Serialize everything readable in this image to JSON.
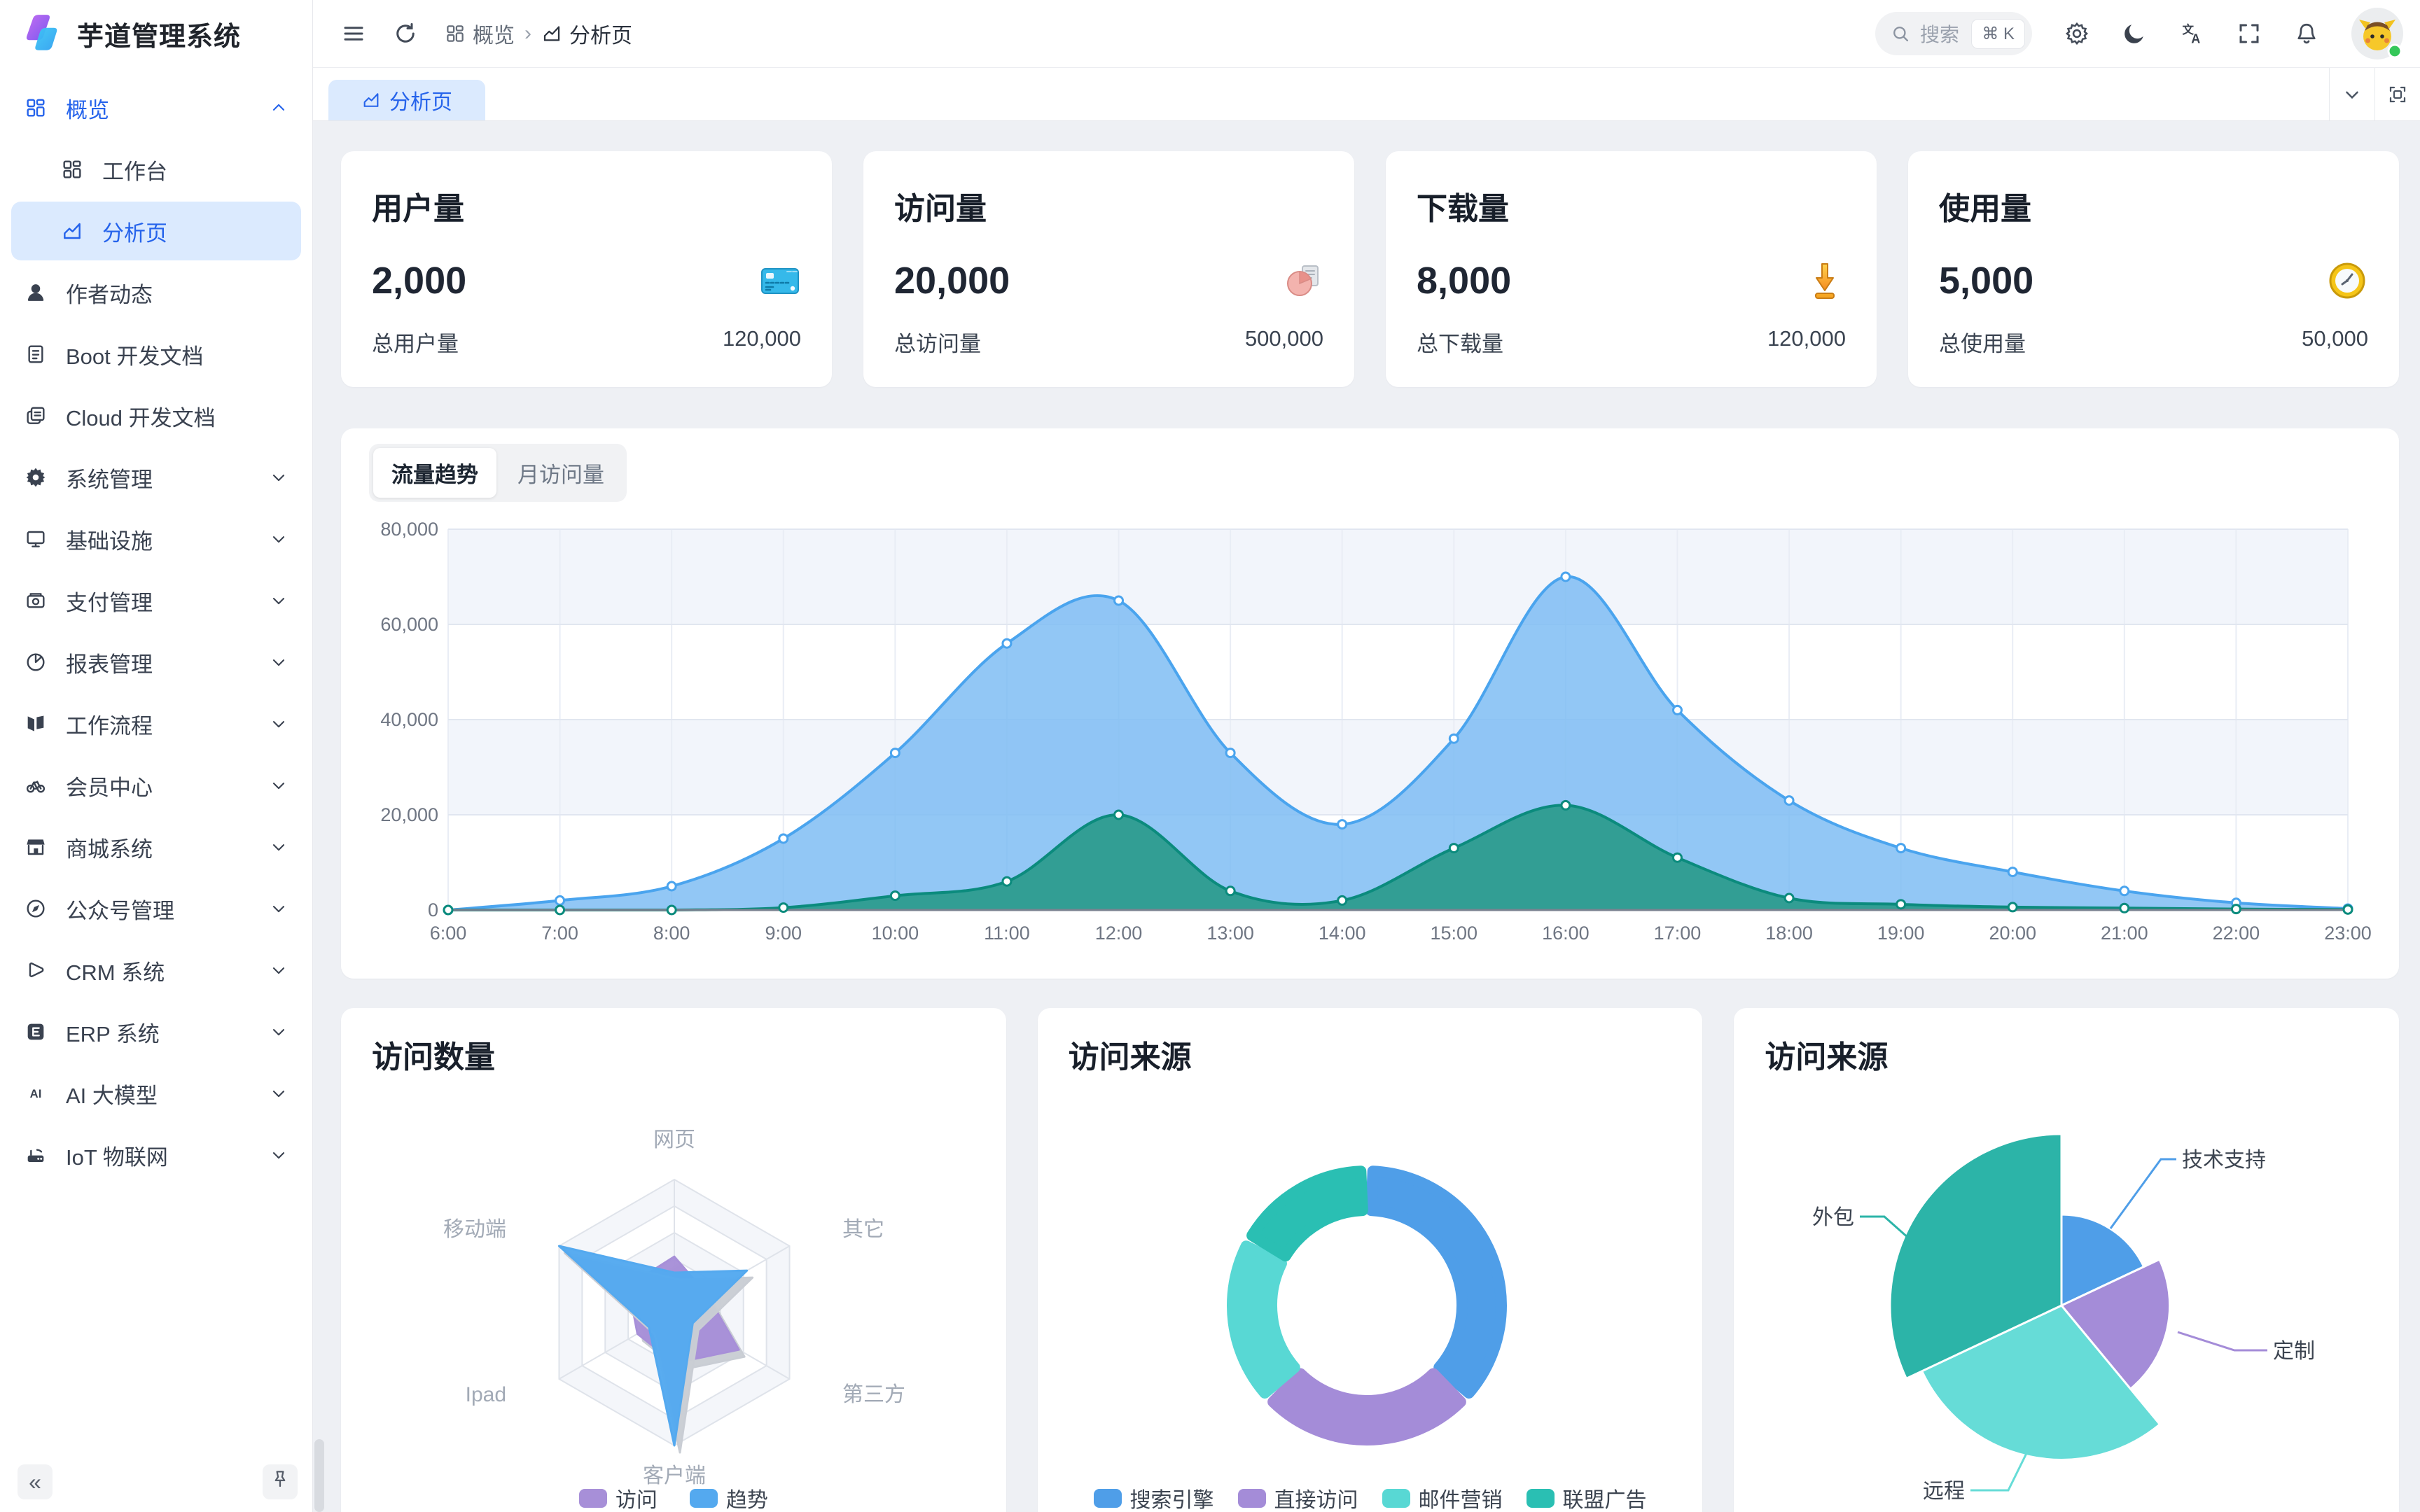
{
  "app": {
    "name": "芋道管理系统"
  },
  "header": {
    "breadcrumb": {
      "root": "概览",
      "current": "分析页"
    },
    "search": {
      "placeholder": "搜索",
      "shortcut": "⌘ K"
    }
  },
  "tabbar": {
    "active_tab": "分析页"
  },
  "sidebar": {
    "collapse_icon": "«",
    "items": [
      {
        "key": "overview",
        "label": "概览",
        "icon": "grid",
        "parent_active": true,
        "chevron": "up"
      },
      {
        "key": "workbench",
        "label": "工作台",
        "icon": "grid",
        "indent": true
      },
      {
        "key": "analysis",
        "label": "分析页",
        "icon": "chart",
        "indent": true,
        "selected": true
      },
      {
        "key": "author",
        "label": "作者动态",
        "icon": "user"
      },
      {
        "key": "boot-doc",
        "label": "Boot 开发文档",
        "icon": "file"
      },
      {
        "key": "cloud-doc",
        "label": "Cloud 开发文档",
        "icon": "copy"
      },
      {
        "key": "system",
        "label": "系统管理",
        "icon": "gear",
        "chevron": "down"
      },
      {
        "key": "infra",
        "label": "基础设施",
        "icon": "monitor",
        "chevron": "down"
      },
      {
        "key": "payment",
        "label": "支付管理",
        "icon": "wallet",
        "chevron": "down"
      },
      {
        "key": "report",
        "label": "报表管理",
        "icon": "pie",
        "chevron": "down"
      },
      {
        "key": "workflow",
        "label": "工作流程",
        "icon": "flow",
        "chevron": "down"
      },
      {
        "key": "member",
        "label": "会员中心",
        "icon": "bike",
        "chevron": "down"
      },
      {
        "key": "mall",
        "label": "商城系统",
        "icon": "shop",
        "chevron": "down"
      },
      {
        "key": "mp",
        "label": "公众号管理",
        "icon": "compass",
        "chevron": "down"
      },
      {
        "key": "crm",
        "label": "CRM 系统",
        "icon": "play",
        "chevron": "down"
      },
      {
        "key": "erp",
        "label": "ERP 系统",
        "icon": "ebox",
        "chevron": "down"
      },
      {
        "key": "ai",
        "label": "AI 大模型",
        "icon": "ai",
        "chevron": "down"
      },
      {
        "key": "iot",
        "label": "IoT 物联网",
        "icon": "iot",
        "chevron": "down"
      }
    ]
  },
  "stats": [
    {
      "title": "用户量",
      "value": "2,000",
      "icon": "bank-card",
      "total_label": "总用户量",
      "total_value": "120,000"
    },
    {
      "title": "访问量",
      "value": "20,000",
      "icon": "pie-doc",
      "total_label": "总访问量",
      "total_value": "500,000"
    },
    {
      "title": "下载量",
      "value": "8,000",
      "icon": "download",
      "total_label": "总下载量",
      "total_value": "120,000"
    },
    {
      "title": "使用量",
      "value": "5,000",
      "icon": "clock",
      "total_label": "总使用量",
      "total_value": "50,000"
    }
  ],
  "traffic_card": {
    "tabs": [
      {
        "label": "流量趋势",
        "active": true
      },
      {
        "label": "月访问量",
        "active": false
      }
    ]
  },
  "cards": {
    "radar_title": "访问数量",
    "donut_title": "访问来源",
    "rose_title": "访问来源"
  },
  "chart_data": [
    {
      "id": "traffic-trend",
      "type": "area",
      "x": [
        "6:00",
        "7:00",
        "8:00",
        "9:00",
        "10:00",
        "11:00",
        "12:00",
        "13:00",
        "14:00",
        "15:00",
        "16:00",
        "17:00",
        "18:00",
        "19:00",
        "20:00",
        "21:00",
        "22:00",
        "23:00"
      ],
      "series": [
        {
          "name": "visits-blue",
          "color": "#4aa4ee",
          "fill": "rgba(122,187,243,0.82)",
          "values": [
            0,
            2000,
            5000,
            15000,
            33000,
            56000,
            65000,
            33000,
            18000,
            36000,
            70000,
            42000,
            23000,
            13000,
            8000,
            4000,
            1500,
            300
          ]
        },
        {
          "name": "visits-green",
          "color": "#0b8b7d",
          "fill": "rgba(45,156,142,0.95)",
          "values": [
            0,
            0,
            0,
            500,
            3000,
            6000,
            20000,
            4000,
            2000,
            13000,
            22000,
            11000,
            2500,
            1200,
            600,
            400,
            200,
            100
          ]
        }
      ],
      "ylim": [
        0,
        80000
      ],
      "yticks": [
        "0",
        "20,000",
        "40,000",
        "60,000",
        "80,000"
      ],
      "grid": true,
      "legend_position": "none"
    },
    {
      "id": "visit-count",
      "type": "radar",
      "max": 100,
      "indicators": [
        "网页",
        "其它",
        "第三方",
        "客户端",
        "Ipad",
        "移动端"
      ],
      "series": [
        {
          "name": "访问",
          "color": "#a78fd8",
          "values": [
            42,
            28,
            56,
            38,
            32,
            40
          ]
        },
        {
          "name": "趋势",
          "color": "#54a9ef",
          "values": [
            30,
            63,
            16,
            100,
            22,
            100
          ]
        }
      ],
      "legend_position": "bottom"
    },
    {
      "id": "visit-source-donut",
      "type": "pie",
      "subtype": "donut",
      "labels": [
        "搜索引擎",
        "直接访问",
        "邮件营销",
        "联盟广告"
      ],
      "values_pct": [
        37,
        26,
        20,
        17
      ],
      "colors": [
        "#4f9ee8",
        "#a48cd8",
        "#58d8d4",
        "#2abfb3"
      ],
      "legend_position": "bottom"
    },
    {
      "id": "visit-source-rose",
      "type": "pie",
      "subtype": "rose",
      "labels": [
        "技术支持",
        "定制",
        "远程",
        "外包"
      ],
      "values_pct": [
        18,
        21,
        29,
        32
      ],
      "colors": [
        "#4f9ee8",
        "#a48cd8",
        "#66dcd7",
        "#2cb4a8"
      ]
    }
  ]
}
